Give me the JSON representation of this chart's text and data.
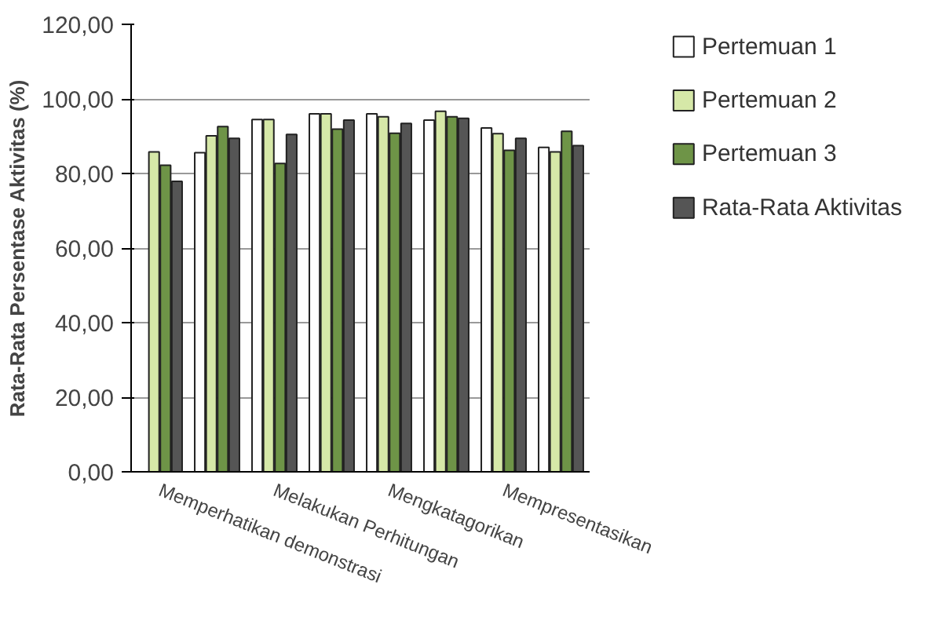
{
  "chart_data": {
    "type": "bar",
    "ylabel": "Rata-Rata Persentase Aktivitas (%)",
    "categories": [
      "Memperhatikan demonstrasi",
      null,
      "Melakukan Perhitungan",
      null,
      "Mengkatagorikan",
      null,
      "Mempresentasikan",
      null
    ],
    "series": [
      {
        "name": "Pertemuan 1",
        "color": "#ffffff",
        "values": [
          null,
          85.6,
          94.5,
          96.0,
          96.0,
          94.3,
          92.2,
          87.0
        ]
      },
      {
        "name": "Pertemuan 2",
        "color": "#d6e8a8",
        "values": [
          85.8,
          90.1,
          94.5,
          96.0,
          95.2,
          96.7,
          90.7,
          85.8
        ]
      },
      {
        "name": "Pertemuan 3",
        "color": "#6e9447",
        "values": [
          82.2,
          92.6,
          82.7,
          91.9,
          90.8,
          95.2,
          86.2,
          91.3
        ]
      },
      {
        "name": "Rata-Rata Aktivitas",
        "color": "#555555",
        "values": [
          77.9,
          89.4,
          90.5,
          94.3,
          93.4,
          94.8,
          89.4,
          87.5
        ]
      }
    ],
    "ylim": [
      0,
      120
    ],
    "yticks": [
      {
        "value": 0,
        "label": "0,00"
      },
      {
        "value": 20,
        "label": "20,00"
      },
      {
        "value": 40,
        "label": "40,00"
      },
      {
        "value": 60,
        "label": "60,00"
      },
      {
        "value": 80,
        "label": "80,00"
      },
      {
        "value": 100,
        "label": "100,00"
      },
      {
        "value": 120,
        "label": "120,00"
      }
    ],
    "grid": "y",
    "legend": "right"
  }
}
